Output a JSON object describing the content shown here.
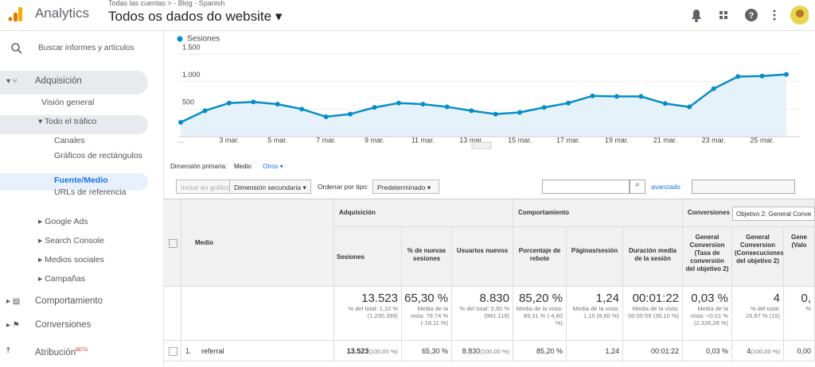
{
  "header": {
    "brand": "Analytics",
    "breadcrumb": "Todas las cuentas > - Blog - Spanish",
    "view": "Todos os dados do website"
  },
  "sidebar": {
    "search": "Buscar informes y artículos",
    "items": [
      "Adquisición",
      "Visión general",
      "Todo el tráfico",
      "Canales",
      "Gráficos de rectángulos",
      "Fuente/Medio",
      "URLs de referencia",
      "Google Ads",
      "Search Console",
      "Medios sociales",
      "Campañas",
      "Comportamiento",
      "Conversiones",
      "Atribución"
    ],
    "beta": "BETA"
  },
  "chart_data": {
    "type": "line",
    "legend": "Sesiones",
    "categories": [
      "…",
      null,
      "3 mar.",
      null,
      "5 mar.",
      null,
      "7 mar.",
      null,
      "9 mar.",
      null,
      "11 mar.",
      null,
      "13 mar.",
      null,
      "15 mar.",
      null,
      "17 mar.",
      null,
      "19 mar.",
      null,
      "21 mar.",
      null,
      "23 mar.",
      null,
      "25 mar.",
      null
    ],
    "series": [
      {
        "name": "Sesiones",
        "color": "#058dc7",
        "values": [
          260,
          470,
          610,
          630,
          590,
          500,
          360,
          410,
          530,
          610,
          590,
          540,
          470,
          410,
          440,
          530,
          610,
          740,
          730,
          730,
          600,
          540,
          870,
          1090,
          1100,
          1130
        ]
      }
    ],
    "ylim": [
      0,
      1500
    ],
    "yticks": [
      500,
      {
        "value": 1000,
        "label": "1.000"
      },
      {
        "value": 1500,
        "label": "1.500"
      }
    ],
    "grid": true
  },
  "controls": {
    "primary": "Dimensión primaria:",
    "medio": "Medio",
    "otros": "Otros",
    "include": "Incluir en gráfico",
    "secondary": "Dimensión secundaria",
    "sort": "Ordenar por tipo:",
    "sort_value": "Predeterminado",
    "advanced": "avanzado"
  },
  "table": {
    "groups": [
      "Adquisición",
      "Comportamiento",
      "Conversiones"
    ],
    "goal": "Objetivo 2: General Conve",
    "columns": [
      "Medio",
      "Sesiones",
      "% de nuevas sesiones",
      "Usuarios nuevos",
      "Porcentaje de rebote",
      "Páginas/sesión",
      "Duración media de la sesión",
      "General Conversion (Tasa de conversión del objetivo 2)",
      "General Conversion (Consecuciones del objetivo 2)",
      "Gene (Valo"
    ],
    "totals": [
      {
        "text": "13.523",
        "sub": "% del total: 1,10 % (1.230.399)"
      },
      {
        "text": "65,30 %",
        "sub": "Media de la vista: 79,74 % (-18,11 %)"
      },
      {
        "text": "8.830",
        "sub": "% del total: 0,90 % (981.119)"
      },
      {
        "text": "85,20 %",
        "sub": "Media de la vista: 89,31 % (-4,60 %)"
      },
      {
        "text": "1,24",
        "sub": "Media de la vista: 1,15 (8,60 %)"
      },
      {
        "text": "00:01:22",
        "sub": "Media de la vista: 00:00:59 (39,10 %)"
      },
      {
        "text": "0,03 %",
        "sub": "Media de la vista: <0,01 % (2.326,28 %)"
      },
      {
        "text": "4",
        "sub": "% del total: 26,67 % (15)"
      },
      {
        "text": "0,",
        "sub": "%"
      }
    ],
    "rows": [
      {
        "index": "1.",
        "medio": "referral",
        "cells": [
          {
            "text": "13.523",
            "sub": "(100,00 %)"
          },
          {
            "text": "65,30 %"
          },
          {
            "text": "8.830",
            "sub": "(100,00 %)"
          },
          {
            "text": "85,20 %"
          },
          {
            "text": "1,24"
          },
          {
            "text": "00:01:22"
          },
          {
            "text": "0,03 %"
          },
          {
            "text": "4",
            "sub": "(100,00 %)"
          },
          {
            "text": "0,00"
          }
        ]
      }
    ]
  }
}
